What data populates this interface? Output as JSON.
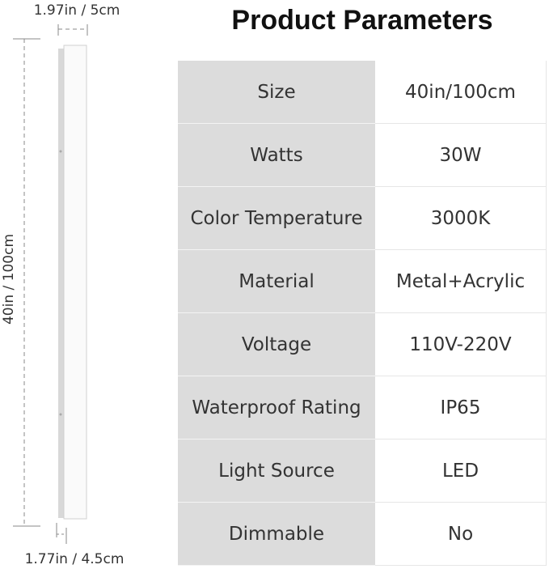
{
  "header": {
    "title": "Product Parameters"
  },
  "dimensions": {
    "width_top": "1.97in / 5cm",
    "length": "40in / 100cm",
    "width_bottom": "1.77in / 4.5cm"
  },
  "table": {
    "rows": [
      [
        "Size",
        "40in/100cm"
      ],
      [
        "Watts",
        "30W"
      ],
      [
        "Color Temperature",
        "3000K"
      ],
      [
        "Material",
        "Metal+Acrylic"
      ],
      [
        "Voltage",
        "110V-220V"
      ],
      [
        "Waterproof Rating",
        "IP65"
      ],
      [
        "Light Source",
        "LED"
      ],
      [
        "Dimmable",
        "No"
      ]
    ]
  }
}
